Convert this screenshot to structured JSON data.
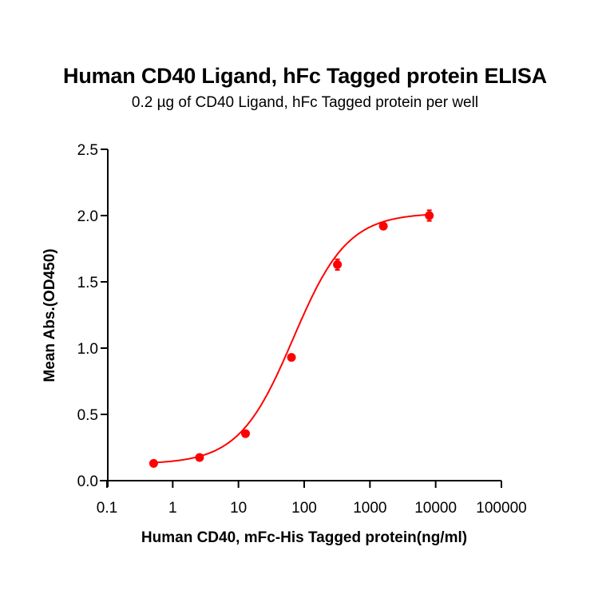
{
  "header": {
    "title": "Human CD40 Ligand, hFc Tagged protein ELISA",
    "subtitle": "0.2 µg of CD40 Ligand, hFc Tagged protein per well"
  },
  "axes": {
    "xlabel": "Human CD40, mFc-His Tagged protein(ng/ml)",
    "ylabel": "Mean Abs.(OD450)",
    "xticks": [
      "0.1",
      "1",
      "10",
      "100",
      "1000",
      "10000",
      "100000"
    ],
    "yticks": [
      "0.0",
      "0.5",
      "1.0",
      "1.5",
      "2.0",
      "2.5"
    ]
  },
  "colors": {
    "series": "#ff0000",
    "axis": "#000000"
  },
  "chart_data": {
    "type": "scatter",
    "title": "Human CD40 Ligand, hFc Tagged protein ELISA",
    "subtitle": "0.2 µg of CD40 Ligand, hFc Tagged protein per well",
    "xlabel": "Human CD40, mFc-His Tagged protein(ng/ml)",
    "ylabel": "Mean Abs.(OD450)",
    "xscale": "log",
    "xlim": [
      0.1,
      100000
    ],
    "ylim": [
      0,
      2.5
    ],
    "grid": false,
    "legend": null,
    "series": [
      {
        "name": "Human CD40, mFc-His Tagged protein",
        "fit": "4PL sigmoidal curve",
        "x": [
          0.512,
          2.56,
          12.8,
          64,
          320,
          1600,
          8000
        ],
        "values": [
          0.13,
          0.175,
          0.355,
          0.93,
          1.63,
          1.92,
          2.0
        ],
        "error": [
          0.01,
          0.01,
          0.01,
          0.02,
          0.04,
          0.02,
          0.04
        ]
      }
    ]
  }
}
